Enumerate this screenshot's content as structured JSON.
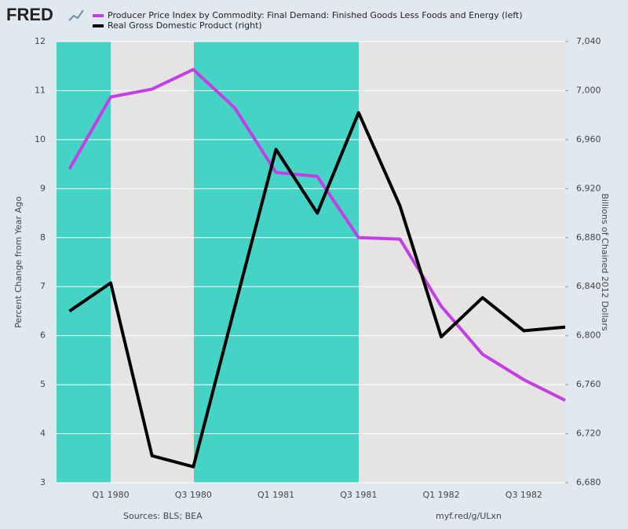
{
  "logo": "FRED",
  "chart_data": {
    "type": "line",
    "categories": [
      null,
      "Q1 1980",
      null,
      "Q3 1980",
      null,
      "Q1 1981",
      null,
      "Q3 1981",
      null,
      "Q1 1982",
      null,
      "Q3 1982",
      null
    ],
    "series": [
      {
        "name": "Producer Price Index by Commodity: Final Demand: Finished Goods Less Foods and Energy (left)",
        "color": "#c43ee8",
        "values": [
          9.4,
          10.87,
          11.03,
          11.43,
          10.65,
          9.33,
          9.25,
          8.0,
          7.97,
          6.6,
          5.62,
          5.1,
          4.68
        ]
      },
      {
        "name": "Real Gross Domestic Product (right)",
        "color": "#000000",
        "axis": "y2",
        "values": [
          6820,
          6843,
          6702,
          6693,
          6823,
          6952,
          6900,
          6982,
          6906,
          6799,
          6831,
          6804,
          6807
        ]
      }
    ],
    "ylabel": "Percent Change from Year Ago",
    "y2label": "Billions of Chained 2012 Dollars",
    "ylim": [
      3,
      12
    ],
    "yticks": [
      3,
      4,
      5,
      6,
      7,
      8,
      9,
      10,
      11,
      12
    ],
    "y2lim": [
      6680,
      7040
    ],
    "y2ticks": [
      {
        "value": 6680,
        "label": "6,680"
      },
      {
        "value": 6720,
        "label": "6,720"
      },
      {
        "value": 6760,
        "label": "6,760"
      },
      {
        "value": 6800,
        "label": "6,800"
      },
      {
        "value": 6840,
        "label": "6,840"
      },
      {
        "value": 6880,
        "label": "6,880"
      },
      {
        "value": 6920,
        "label": "6,920"
      },
      {
        "value": 6960,
        "label": "6,960"
      },
      {
        "value": 7000,
        "label": "7,000"
      },
      {
        "value": 7040,
        "label": "7,040"
      }
    ],
    "grid": true,
    "source": "Sources: BLS; BEA",
    "link": "myf.red/g/ULxn"
  }
}
